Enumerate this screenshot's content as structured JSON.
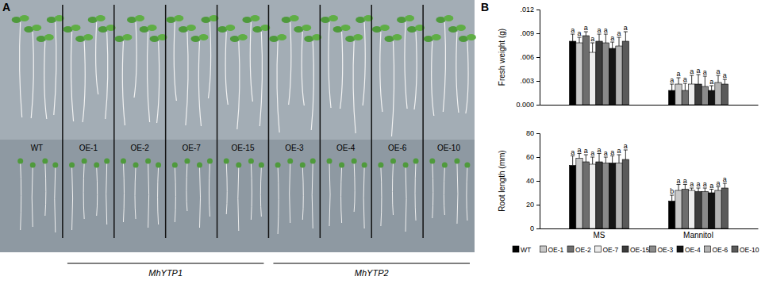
{
  "panel_labels": [
    "A",
    "B"
  ],
  "photo": {
    "columns": [
      {
        "label": "WT"
      },
      {
        "label": "OE-1",
        "group": "MhYTP1"
      },
      {
        "label": "OE-2",
        "group": "MhYTP1"
      },
      {
        "label": "OE-7",
        "group": "MhYTP1"
      },
      {
        "label": "OE-15",
        "group": "MhYTP1"
      },
      {
        "label": "OE-3",
        "group": "MhYTP2"
      },
      {
        "label": "OE-4",
        "group": "MhYTP2"
      },
      {
        "label": "OE-6",
        "group": "MhYTP2"
      },
      {
        "label": "OE-10",
        "group": "MhYTP2"
      }
    ]
  },
  "chart_data": [
    {
      "type": "bar",
      "y_label": "Fresh weight (g)",
      "categories": [
        "MS",
        "Mannitol"
      ],
      "ylim": [
        0,
        0.012
      ],
      "yticks": [
        {
          "value": 0,
          "label": "0.000"
        },
        {
          "value": 0.003,
          "label": ".003"
        },
        {
          "value": 0.006,
          "label": ".006"
        },
        {
          "value": 0.009,
          "label": ".009"
        },
        {
          "value": 0.012,
          "label": ".012"
        }
      ],
      "tick_labels": "y",
      "series": [
        {
          "name": "WT",
          "color": "#000000",
          "values": [
            0.008,
            0.0018
          ],
          "errors": [
            0.0009,
            0.0008
          ],
          "annotations": [
            "a",
            "a"
          ]
        },
        {
          "name": "OE-1",
          "color": "#c8c8c8",
          "values": [
            0.0078,
            0.0026
          ],
          "errors": [
            0.0007,
            0.0008
          ],
          "annotations": [
            "a",
            "a"
          ]
        },
        {
          "name": "OE-2",
          "color": "#6e6e6e",
          "values": [
            0.0087,
            0.0018
          ],
          "errors": [
            0.0005,
            0.0009
          ],
          "annotations": [
            "a",
            "a"
          ]
        },
        {
          "name": "OE-7",
          "color": "#ececec",
          "values": [
            0.0066,
            0.0026
          ],
          "errors": [
            0.0012,
            0.0011
          ],
          "annotations": [
            "a",
            "a"
          ]
        },
        {
          "name": "OE-15",
          "color": "#3c3c3c",
          "values": [
            0.008,
            0.0026
          ],
          "errors": [
            0.0009,
            0.0012
          ],
          "annotations": [
            "a",
            "a"
          ]
        },
        {
          "name": "OE-3",
          "color": "#8a8a8a",
          "values": [
            0.0078,
            0.0023
          ],
          "errors": [
            0.0011,
            0.0013
          ],
          "annotations": [
            "a",
            "a"
          ]
        },
        {
          "name": "OE-4",
          "color": "#141414",
          "values": [
            0.0071,
            0.0018
          ],
          "errors": [
            0.0008,
            0.0006
          ],
          "annotations": [
            "a",
            "a"
          ]
        },
        {
          "name": "OE-6",
          "color": "#b4b4b4",
          "values": [
            0.0074,
            0.0028
          ],
          "errors": [
            0.0011,
            0.0009
          ],
          "annotations": [
            "a",
            "a"
          ]
        },
        {
          "name": "OE-10",
          "color": "#5a5a5a",
          "values": [
            0.008,
            0.0026
          ],
          "errors": [
            0.0012,
            0.0006
          ],
          "annotations": [
            "a",
            "a"
          ]
        }
      ]
    },
    {
      "type": "bar",
      "y_label": "Root length (mm)",
      "categories": [
        "MS",
        "Mannitol"
      ],
      "ylim": [
        0,
        80
      ],
      "yticks": [
        0,
        20,
        40,
        60,
        80
      ],
      "legend": "bottom",
      "series": [
        {
          "name": "WT",
          "color": "#000000",
          "values": [
            53,
            23
          ],
          "errors": [
            8,
            5
          ],
          "annotations": [
            "a",
            "b"
          ]
        },
        {
          "name": "OE-1",
          "color": "#c8c8c8",
          "values": [
            59,
            32
          ],
          "errors": [
            4,
            5
          ],
          "annotations": [
            "a",
            "a"
          ]
        },
        {
          "name": "OE-2",
          "color": "#6e6e6e",
          "values": [
            56,
            33
          ],
          "errors": [
            6,
            4
          ],
          "annotations": [
            "a",
            "a"
          ]
        },
        {
          "name": "OE-7",
          "color": "#ececec",
          "values": [
            54,
            32
          ],
          "errors": [
            6,
            2
          ],
          "annotations": [
            "a",
            "a"
          ]
        },
        {
          "name": "OE-15",
          "color": "#3c3c3c",
          "values": [
            56,
            31
          ],
          "errors": [
            7,
            3
          ],
          "annotations": [
            "a",
            "a"
          ]
        },
        {
          "name": "OE-3",
          "color": "#8a8a8a",
          "values": [
            55,
            31
          ],
          "errors": [
            5,
            3
          ],
          "annotations": [
            "a",
            "a"
          ]
        },
        {
          "name": "OE-4",
          "color": "#141414",
          "values": [
            55,
            30
          ],
          "errors": [
            6,
            3
          ],
          "annotations": [
            "a",
            "a"
          ]
        },
        {
          "name": "OE-6",
          "color": "#b4b4b4",
          "values": [
            55,
            32
          ],
          "errors": [
            7,
            3
          ],
          "annotations": [
            "a",
            "a"
          ]
        },
        {
          "name": "OE-10",
          "color": "#5a5a5a",
          "values": [
            58,
            34
          ],
          "errors": [
            8,
            4
          ],
          "annotations": [
            "a",
            "a"
          ]
        }
      ],
      "group_note": null
    }
  ]
}
